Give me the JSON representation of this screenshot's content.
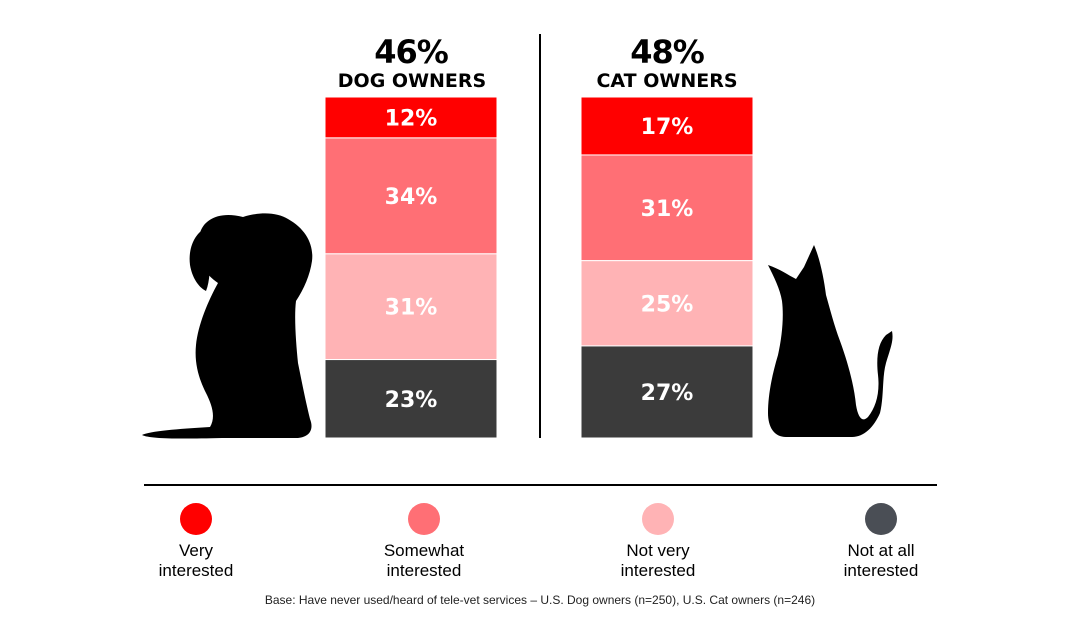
{
  "chart_data": {
    "type": "bar",
    "stacked": true,
    "percent_stacked": true,
    "categories": [
      "DOG OWNERS",
      "CAT OWNERS"
    ],
    "headline_values": [
      "46%",
      "48%"
    ],
    "series": [
      {
        "name": "Very\ninterested",
        "color": "#ff0000",
        "values": [
          12,
          17
        ],
        "labels": [
          "12%",
          "17%"
        ]
      },
      {
        "name": "Somewhat\ninterested",
        "color": "#ff6f75",
        "values": [
          34,
          31
        ],
        "labels": [
          "34%",
          "31%"
        ]
      },
      {
        "name": "Not very\ninterested",
        "color": "#ffb3b5",
        "values": [
          31,
          25
        ],
        "labels": [
          "31%",
          "25%"
        ]
      },
      {
        "name": "Not at all\ninterested",
        "color": "#3b3b3b",
        "values": [
          23,
          27
        ],
        "labels": [
          "23%",
          "27%"
        ]
      }
    ],
    "ylim": [
      0,
      100
    ],
    "legend_position": "bottom",
    "grid": false
  },
  "footnote": "Base: Have never used/heard of tele-vet services – U.S. Dog owners (n=250), U.S. Cat owners (n=246)",
  "icons": [
    "dog-silhouette-icon",
    "cat-silhouette-icon"
  ]
}
